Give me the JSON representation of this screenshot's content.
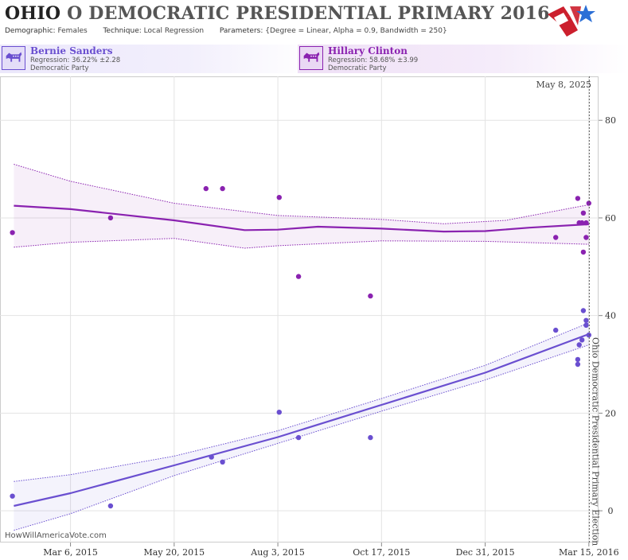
{
  "header": {
    "state": "OHIO",
    "title_rest": "O DEMOCRATIC PRESIDENTIAL PRIMARY 2016",
    "demographic_label": "Demographic:",
    "demographic_value": "Females",
    "technique_label": "Technique:",
    "technique_value": "Local Regression",
    "parameters_label": "Parameters:",
    "parameters_value": "{Degree = Linear, Alpha = 0.9, Bandwidth = 250}"
  },
  "candidates": [
    {
      "name": "Bernie Sanders",
      "regression": "Regression: 36.22% ±2.28",
      "party": "Democratic Party",
      "color": "#6a4fd0"
    },
    {
      "name": "Hillary Clinton",
      "regression": "Regression: 58.68% ±3.99",
      "party": "Democratic Party",
      "color": "#8a22b0"
    }
  ],
  "credit": "HowWillAmericaVote.com",
  "chart_data": {
    "type": "scatter",
    "current_date_label": "May 8, 2025",
    "event_label": "Ohio Democratic Presidential Primary Election",
    "event_date": "2016-03-15",
    "x_range": [
      "2015-01-14",
      "2016-03-22"
    ],
    "x_ticks": [
      {
        "date": "2015-03-06",
        "label": "Mar 6, 2015"
      },
      {
        "date": "2015-05-20",
        "label": "May 20, 2015"
      },
      {
        "date": "2015-08-03",
        "label": "Aug 3, 2015"
      },
      {
        "date": "2015-10-17",
        "label": "Oct 17, 2015"
      },
      {
        "date": "2015-12-31",
        "label": "Dec 31, 2015"
      },
      {
        "date": "2016-03-15",
        "label": "Mar 15, 2016"
      }
    ],
    "y_ticks": [
      0,
      20,
      40,
      60,
      80
    ],
    "ylim": [
      -6.5,
      89
    ],
    "series": [
      {
        "name": "Bernie Sanders",
        "color": "#6a4fd0",
        "band_color": "#6a4fd0",
        "points": [
          [
            "2015-01-23",
            3
          ],
          [
            "2015-04-04",
            1
          ],
          [
            "2015-06-16",
            11
          ],
          [
            "2015-06-24",
            10
          ],
          [
            "2015-08-04",
            20.2
          ],
          [
            "2015-08-18",
            15
          ],
          [
            "2015-10-09",
            15
          ],
          [
            "2016-02-20",
            37
          ],
          [
            "2016-03-07",
            31
          ],
          [
            "2016-03-07",
            30
          ],
          [
            "2016-03-08",
            34
          ],
          [
            "2016-03-10",
            35
          ],
          [
            "2016-03-11",
            41
          ],
          [
            "2016-03-13",
            39
          ],
          [
            "2016-03-13",
            38
          ],
          [
            "2016-03-15",
            36
          ]
        ],
        "trend": [
          [
            "2015-01-24",
            1
          ],
          [
            "2015-03-06",
            3.6
          ],
          [
            "2015-05-20",
            9.3
          ],
          [
            "2015-08-03",
            15.1
          ],
          [
            "2015-10-17",
            21.7
          ],
          [
            "2015-12-31",
            28.3
          ],
          [
            "2016-03-15",
            36.2
          ]
        ],
        "upper": [
          [
            "2015-01-24",
            6
          ],
          [
            "2015-03-06",
            7.4
          ],
          [
            "2015-05-20",
            11.2
          ],
          [
            "2015-08-03",
            16.4
          ],
          [
            "2015-10-17",
            23
          ],
          [
            "2015-12-31",
            29.8
          ],
          [
            "2016-03-15",
            38.5
          ]
        ],
        "lower": [
          [
            "2015-01-24",
            -4
          ],
          [
            "2015-03-06",
            -0.6
          ],
          [
            "2015-05-20",
            7.2
          ],
          [
            "2015-08-03",
            13.8
          ],
          [
            "2015-10-17",
            20.4
          ],
          [
            "2015-12-31",
            26.8
          ],
          [
            "2016-03-15",
            34
          ]
        ]
      },
      {
        "name": "Hillary Clinton",
        "color": "#8a22b0",
        "band_color": "#8a22b0",
        "points": [
          [
            "2015-01-23",
            57
          ],
          [
            "2015-04-04",
            60
          ],
          [
            "2015-06-12",
            66
          ],
          [
            "2015-06-24",
            66
          ],
          [
            "2015-08-04",
            64.2
          ],
          [
            "2015-08-18",
            48
          ],
          [
            "2015-10-09",
            44
          ],
          [
            "2016-02-20",
            56
          ],
          [
            "2016-03-07",
            64
          ],
          [
            "2016-03-08",
            59
          ],
          [
            "2016-03-10",
            59
          ],
          [
            "2016-03-11",
            61
          ],
          [
            "2016-03-11",
            53
          ],
          [
            "2016-03-13",
            56
          ],
          [
            "2016-03-13",
            59
          ],
          [
            "2016-03-15",
            63
          ]
        ],
        "trend": [
          [
            "2015-01-24",
            62.5
          ],
          [
            "2015-03-06",
            61.8
          ],
          [
            "2015-05-20",
            59.5
          ],
          [
            "2015-07-10",
            57.5
          ],
          [
            "2015-08-03",
            57.6
          ],
          [
            "2015-09-01",
            58.2
          ],
          [
            "2015-10-17",
            57.8
          ],
          [
            "2015-12-01",
            57.2
          ],
          [
            "2015-12-31",
            57.3
          ],
          [
            "2016-02-01",
            58
          ],
          [
            "2016-03-15",
            58.7
          ]
        ],
        "upper": [
          [
            "2015-01-24",
            71
          ],
          [
            "2015-03-06",
            67.5
          ],
          [
            "2015-05-20",
            63
          ],
          [
            "2015-08-03",
            60.5
          ],
          [
            "2015-10-17",
            59.7
          ],
          [
            "2015-12-01",
            58.8
          ],
          [
            "2016-01-15",
            59.5
          ],
          [
            "2016-03-15",
            62.7
          ]
        ],
        "lower": [
          [
            "2015-01-24",
            54
          ],
          [
            "2015-03-06",
            55
          ],
          [
            "2015-05-20",
            55.8
          ],
          [
            "2015-07-10",
            53.8
          ],
          [
            "2015-08-03",
            54.3
          ],
          [
            "2015-10-17",
            55.3
          ],
          [
            "2015-12-31",
            55.2
          ],
          [
            "2016-03-15",
            54.6
          ]
        ]
      }
    ]
  }
}
